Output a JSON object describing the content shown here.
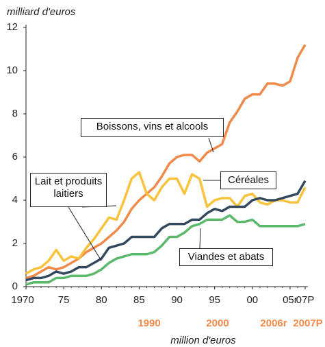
{
  "chart_data": {
    "type": "line",
    "y_label": "milliard d'euros",
    "x": [
      1970,
      1971,
      1972,
      1973,
      1974,
      1975,
      1976,
      1977,
      1978,
      1979,
      1980,
      1981,
      1982,
      1983,
      1984,
      1985,
      1986,
      1987,
      1988,
      1989,
      1990,
      1991,
      1992,
      1993,
      1994,
      1995,
      1996,
      1997,
      1998,
      1999,
      2000,
      2001,
      2002,
      2003,
      2004,
      2005,
      2006,
      2007
    ],
    "xlim": [
      1970,
      2007
    ],
    "xticks": [
      1970,
      {
        "value": 1975,
        "label": "75"
      },
      {
        "value": 1980,
        "label": "80"
      },
      {
        "value": 1985,
        "label": "85"
      },
      {
        "value": 1990,
        "label": "90"
      },
      {
        "value": 1995,
        "label": "95"
      },
      {
        "value": 2000,
        "label": "00"
      },
      {
        "value": 2005,
        "label": "05r"
      },
      {
        "value": 2007,
        "label": "07P"
      }
    ],
    "ylim": [
      0,
      12
    ],
    "yticks": [
      0,
      2,
      4,
      6,
      8,
      10,
      12
    ],
    "series": [
      {
        "name": "Boissons, vins et alcools",
        "color": "#f08a4b",
        "values": [
          0.4,
          0.5,
          0.7,
          0.9,
          0.8,
          0.9,
          1.1,
          1.3,
          1.6,
          1.8,
          2.0,
          2.3,
          2.6,
          3.0,
          3.6,
          4.0,
          4.3,
          4.6,
          5.1,
          5.7,
          6.0,
          6.1,
          6.1,
          5.8,
          6.2,
          6.4,
          6.6,
          7.6,
          8.1,
          8.7,
          8.9,
          8.9,
          9.4,
          9.4,
          9.3,
          9.5,
          10.6,
          11.2
        ]
      },
      {
        "name": "Céréales",
        "color": "#f9c23c",
        "values": [
          0.6,
          0.8,
          0.9,
          1.2,
          1.7,
          1.2,
          1.4,
          1.3,
          1.8,
          2.2,
          2.7,
          3.2,
          3.1,
          4.0,
          5.0,
          5.3,
          4.3,
          4.0,
          4.6,
          5.0,
          5.0,
          4.3,
          5.2,
          5.0,
          3.7,
          4.0,
          4.1,
          4.1,
          3.7,
          4.2,
          4.3,
          3.9,
          3.8,
          4.0,
          4.0,
          3.9,
          3.9,
          4.6
        ]
      },
      {
        "name": "Lait et produits laitiers",
        "color": "#34495e",
        "values": [
          0.3,
          0.4,
          0.4,
          0.5,
          0.7,
          0.6,
          0.7,
          0.9,
          0.9,
          1.1,
          1.3,
          1.8,
          1.9,
          2.0,
          2.3,
          2.3,
          2.3,
          2.3,
          2.7,
          2.9,
          2.9,
          2.9,
          3.1,
          3.1,
          3.4,
          3.6,
          3.5,
          3.7,
          3.7,
          3.7,
          4.0,
          4.1,
          4.0,
          4.0,
          4.1,
          4.2,
          4.3,
          4.9
        ]
      },
      {
        "name": "Viandes et abats",
        "color": "#5cb86a",
        "values": [
          0.1,
          0.2,
          0.2,
          0.2,
          0.4,
          0.4,
          0.5,
          0.5,
          0.5,
          0.6,
          0.8,
          1.1,
          1.3,
          1.4,
          1.5,
          1.5,
          1.5,
          1.6,
          1.9,
          2.3,
          2.3,
          2.5,
          2.8,
          2.9,
          3.1,
          3.1,
          3.1,
          3.3,
          3.0,
          3.0,
          3.1,
          2.8,
          2.8,
          2.8,
          2.8,
          2.8,
          2.8,
          2.9
        ]
      }
    ],
    "footer_labels": [
      "1990",
      "2000",
      "2006r",
      "2007P"
    ],
    "footer_unit": "million d'euros"
  }
}
